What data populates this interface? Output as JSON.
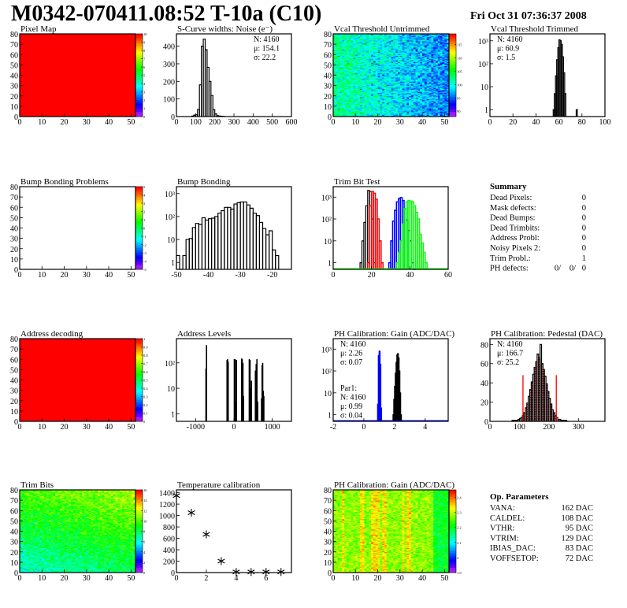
{
  "header": {
    "title": "M0342-070411.08:52 T-10a (C10)",
    "date": "Fri Oct 31 07:36:37 2008"
  },
  "colors": {
    "black": "#000000",
    "red": "#ff0000",
    "blue": "#0000ff",
    "green": "#00ff00"
  },
  "chart_data": [
    {
      "type": "heatmap",
      "title": "Pixel Map",
      "xlim": [
        0,
        52
      ],
      "ylim": [
        0,
        80
      ],
      "xticks": [
        0,
        10,
        20,
        30,
        40,
        50
      ],
      "yticks": [
        0,
        10,
        20,
        30,
        40,
        50,
        60,
        70,
        80
      ],
      "zlim": [
        0,
        10
      ],
      "zticks": [
        "0",
        "1",
        "2",
        "3",
        "4",
        "5",
        "6",
        "7",
        "8",
        "9",
        "10"
      ],
      "uniform_value": 10
    },
    {
      "type": "bar",
      "title": "S-Curve widths: Noise (e⁻)",
      "xlim": [
        0,
        600
      ],
      "ylim": [
        0,
        470
      ],
      "xticks": [
        0,
        100,
        200,
        300,
        400,
        500,
        600
      ],
      "yticks": [
        0,
        100,
        200,
        300,
        400
      ],
      "series": [
        {
          "color": "#000000",
          "x0": 80,
          "bw": 10,
          "counts": [
            3,
            8,
            10,
            40,
            180,
            400,
            440,
            380,
            280,
            200,
            120,
            40,
            15,
            5,
            3,
            2,
            1
          ]
        }
      ],
      "stats": [
        {
          "text": "N: 4160",
          "color": "#000000"
        },
        {
          "text": "μ: 154.1",
          "color": "#000000"
        },
        {
          "text": "σ: 22.2",
          "color": "#000000"
        }
      ]
    },
    {
      "type": "heatmap",
      "title": "Vcal Threshold Untrimmed",
      "xlim": [
        0,
        52
      ],
      "ylim": [
        0,
        80
      ],
      "xticks": [
        0,
        10,
        20,
        30,
        40,
        50
      ],
      "yticks": [
        0,
        10,
        20,
        30,
        40,
        50,
        60,
        70,
        80
      ],
      "zlim": [
        88,
        119
      ],
      "zticks": [
        "90",
        "95",
        "100",
        "105",
        "110",
        "115"
      ],
      "ztick_values": [
        90,
        95,
        100,
        105,
        110,
        115
      ]
    },
    {
      "type": "bar",
      "title": "Vcal Threshold Trimmed",
      "log_y": true,
      "xlim": [
        0,
        100
      ],
      "ylim": [
        0.5,
        2000
      ],
      "xticks": [
        0,
        20,
        40,
        60,
        80,
        100
      ],
      "yticks": [
        1,
        10,
        100,
        1000
      ],
      "ytick_labels": [
        "1",
        "10",
        "10²",
        "10³"
      ],
      "series": [
        {
          "color": "#000000",
          "x0": 55,
          "bw": 1,
          "counts": [
            1,
            5,
            30,
            150,
            500,
            1100,
            1000,
            700,
            200,
            40,
            5,
            0,
            0,
            0,
            0,
            0,
            0,
            0,
            0,
            0,
            1
          ]
        }
      ],
      "stats": [
        {
          "text": "N: 4160",
          "color": "#000000"
        },
        {
          "text": "μ: 60.9",
          "color": "#000000"
        },
        {
          "text": "σ:  1.5",
          "color": "#000000"
        }
      ]
    },
    {
      "type": "heatmap",
      "title": "Bump Bonding Problems",
      "xlim": [
        0,
        52
      ],
      "ylim": [
        0,
        80
      ],
      "xticks": [
        0,
        10,
        20,
        30,
        40,
        50
      ],
      "yticks": [
        0,
        10,
        20,
        30,
        40,
        50,
        60,
        70,
        80
      ],
      "zlim": [
        -5,
        5
      ],
      "zticks": [
        "-5",
        "-4",
        "-3",
        "-2",
        "-1",
        "0",
        "1",
        "2",
        "3",
        "4",
        "5"
      ],
      "empty": true
    },
    {
      "type": "bar",
      "title": "Bump Bonding",
      "log_y": true,
      "xlim": [
        -50,
        -14
      ],
      "ylim": [
        0.5,
        2000
      ],
      "xticks": [
        -50,
        -40,
        -30,
        -20
      ],
      "yticks": [
        1,
        10,
        100,
        1000
      ],
      "ytick_labels": [
        "1",
        "10",
        "10²",
        "10³"
      ],
      "series": [
        {
          "color": "#000000",
          "x0": -50,
          "bw": 1,
          "counts": [
            2,
            0,
            2,
            10,
            11,
            33,
            50,
            45,
            88,
            70,
            80,
            85,
            100,
            140,
            180,
            250,
            250,
            210,
            350,
            400,
            430,
            430,
            320,
            230,
            140,
            110,
            55,
            30,
            16,
            24,
            3.5,
            2
          ]
        }
      ]
    },
    {
      "type": "bar",
      "title": "Trim Bit Test",
      "log_y": true,
      "xlim": [
        0,
        60
      ],
      "ylim": [
        0.5,
        3000
      ],
      "xticks": [
        0,
        20,
        40,
        60
      ],
      "yticks": [
        1,
        10,
        100,
        1000
      ],
      "ytick_labels": [
        "1",
        "10",
        "10²",
        "10³"
      ],
      "series": [
        {
          "color": "#000000",
          "x0": 14,
          "bw": 1,
          "counts": [
            1,
            10,
            70,
            400,
            2000,
            1800,
            100,
            1
          ]
        },
        {
          "color": "#ff0000",
          "x0": 18,
          "bw": 1,
          "counts": [
            1,
            400,
            1800,
            1500,
            800,
            100,
            10,
            1
          ]
        },
        {
          "color": "#0000ff",
          "x0": 29,
          "bw": 1,
          "counts": [
            1,
            10,
            80,
            250,
            600,
            850,
            950,
            700,
            300,
            90,
            30,
            10,
            1,
            0.4
          ]
        },
        {
          "color": "#00ff00",
          "x0": 33,
          "bw": 1,
          "counts": [
            1,
            3,
            10,
            60,
            300,
            600,
            700,
            650,
            600,
            400,
            200,
            100,
            20,
            8,
            3,
            1
          ]
        }
      ]
    },
    null,
    {
      "type": "heatmap",
      "title": "Address decoding",
      "xlim": [
        0,
        52
      ],
      "ylim": [
        0,
        80
      ],
      "xticks": [
        0,
        10,
        20,
        30,
        40,
        50
      ],
      "yticks": [
        0,
        10,
        20,
        30,
        40,
        50,
        60,
        70,
        80
      ],
      "zlim": [
        0,
        1
      ],
      "zticks": [
        "0",
        "0.1",
        "0.2",
        "0.3",
        "0.4",
        "0.5",
        "0.6",
        "0.7",
        "0.8",
        "0.9",
        "1"
      ],
      "uniform_value": 1
    },
    {
      "type": "spikes",
      "title": "Address Levels",
      "log_y": true,
      "xlim": [
        -1500,
        1500
      ],
      "ylim": [
        0.5,
        900
      ],
      "xticks": [
        -1000,
        0,
        1000
      ],
      "yticks": [
        1,
        10,
        100
      ],
      "ytick_labels": [
        "1",
        "10",
        "10²"
      ],
      "points": [
        [
          -730,
          60
        ],
        [
          -715,
          500
        ],
        [
          -180,
          130
        ],
        [
          -165,
          140
        ],
        [
          -150,
          110
        ],
        [
          10,
          140
        ],
        [
          30,
          140
        ],
        [
          55,
          3
        ],
        [
          65,
          130
        ],
        [
          200,
          150
        ],
        [
          215,
          140
        ],
        [
          235,
          100
        ],
        [
          250,
          5
        ],
        [
          400,
          140
        ],
        [
          420,
          130
        ],
        [
          440,
          10
        ],
        [
          455,
          20
        ],
        [
          560,
          50
        ],
        [
          580,
          90
        ],
        [
          600,
          140
        ],
        [
          620,
          3
        ],
        [
          720,
          4
        ],
        [
          735,
          80
        ],
        [
          750,
          100
        ],
        [
          765,
          8
        ],
        [
          780,
          5
        ]
      ]
    },
    {
      "type": "bar",
      "title": "PH Calibration: Gain (ADC/DAC)",
      "log_y": true,
      "xlim": [
        -2,
        5.5
      ],
      "ylim": [
        0.5,
        3000
      ],
      "xticks": [
        -2,
        0,
        2,
        4
      ],
      "yticks": [
        1,
        10,
        100,
        1000
      ],
      "ytick_labels": [
        "1",
        "10",
        "10²",
        "10³"
      ],
      "series": [
        {
          "color": "#000000",
          "x0": 1.9,
          "bw": 0.05,
          "counts": [
            1,
            5,
            20,
            80,
            250,
            550,
            620,
            400,
            100,
            10,
            1,
            0.4,
            0.4
          ]
        },
        {
          "color": "#0000ff",
          "x0": 0.9,
          "bw": 0.05,
          "counts": [
            3,
            500,
            800,
            200,
            2
          ]
        }
      ],
      "stats": [
        {
          "text": "N: 4160",
          "color": "#000000"
        },
        {
          "text": "μ: 2.26",
          "color": "#000000"
        },
        {
          "text": "σ: 0.07",
          "color": "#000000"
        }
      ],
      "stats2": [
        {
          "text": "Par1:",
          "color": "#0000ff"
        },
        {
          "text": "N: 4160",
          "color": "#0000ff"
        },
        {
          "text": "μ: 0.99",
          "color": "#0000ff"
        },
        {
          "text": "σ: 0.04",
          "color": "#0000ff"
        }
      ]
    },
    {
      "type": "bar",
      "title": "PH Calibration: Pedestal (DAC)",
      "xlim": [
        0,
        390
      ],
      "ylim": [
        0,
        86
      ],
      "xticks": [
        0,
        100,
        200,
        300
      ],
      "yticks": [
        0,
        20,
        40,
        60,
        80
      ],
      "series": [
        {
          "color": "#000000",
          "x0": 75,
          "bw": 5,
          "counts": [
            1,
            1,
            1,
            1,
            2,
            3,
            4,
            6,
            9,
            14,
            19,
            26,
            33,
            41,
            49,
            56,
            62,
            70,
            66,
            80,
            60,
            54,
            47,
            39,
            31,
            24,
            18,
            12,
            9,
            6,
            4,
            2,
            2,
            1,
            1,
            1,
            1,
            0
          ]
        }
      ],
      "fill_range": [
        112,
        225
      ],
      "cut_lines": [
        112,
        225
      ],
      "cut_height": 48,
      "stats": [
        {
          "text": "N: 4160",
          "color": "#000000"
        },
        {
          "text": "μ: 166.7",
          "color": "#ff0000"
        },
        {
          "text": "σ: 25.2",
          "color": "#ff0000"
        }
      ]
    },
    {
      "type": "heatmap",
      "title": "Trim Bits",
      "xlim": [
        0,
        52
      ],
      "ylim": [
        0,
        80
      ],
      "xticks": [
        0,
        10,
        20,
        30,
        40,
        50
      ],
      "yticks": [
        0,
        10,
        20,
        30,
        40,
        50,
        60,
        70,
        80
      ],
      "zlim": [
        0,
        16
      ],
      "zticks": [
        "0",
        "2",
        "4",
        "6",
        "8",
        "10",
        "12",
        "14",
        "16"
      ],
      "ztick_values": [
        0,
        2,
        4,
        6,
        8,
        10,
        12,
        14,
        16
      ]
    },
    {
      "type": "scatter",
      "title": "Temperature calibration",
      "xlim": [
        0,
        7.7
      ],
      "ylim": [
        0,
        1450
      ],
      "xticks": [
        0,
        2,
        4,
        6
      ],
      "yticks": [
        0,
        200,
        400,
        600,
        800,
        1000,
        1200,
        1400
      ],
      "x": [
        0,
        1,
        2,
        3,
        4,
        5,
        6,
        7
      ],
      "y": [
        1350,
        1050,
        670,
        200,
        10,
        10,
        10,
        10
      ]
    },
    {
      "type": "heatmap",
      "title": "PH Calibration: Gain (ADC/DAC)",
      "xlim": [
        0,
        52
      ],
      "ylim": [
        0,
        80
      ],
      "xticks": [
        0,
        10,
        20,
        30,
        40,
        50
      ],
      "yticks": [
        0,
        10,
        20,
        30,
        40,
        50,
        60,
        70,
        80
      ],
      "zlim": [
        1.9,
        2.45
      ],
      "zticks": [
        "1.9",
        "2",
        "2.1",
        "2.2",
        "2.3",
        "2.4"
      ],
      "ztick_values": [
        1.9,
        2.0,
        2.1,
        2.2,
        2.3,
        2.4
      ]
    },
    null
  ],
  "summary": {
    "title": "Summary",
    "rows": [
      {
        "label": "Dead Pixels:",
        "value": "0"
      },
      {
        "label": "Mask defects:",
        "value": "0"
      },
      {
        "label": "Dead Bumps:",
        "value": "0"
      },
      {
        "label": "Dead Trimbits:",
        "value": "0"
      },
      {
        "label": "Address Probl:",
        "value": "0"
      },
      {
        "label": "Noisy Pixels 2:",
        "value": "0"
      },
      {
        "label": "Trim Probl.:",
        "value": "1"
      }
    ],
    "ph_defects": {
      "label": "PH defects:",
      "v1": "0/",
      "v2": "0/",
      "v3": "0"
    }
  },
  "op_parameters": {
    "title": "Op. Parameters",
    "rows": [
      {
        "label": "VANA:",
        "value": "162 DAC"
      },
      {
        "label": "CALDEL:",
        "value": "108 DAC"
      },
      {
        "label": "VTHR:",
        "value": "95 DAC"
      },
      {
        "label": "VTRIM:",
        "value": "129 DAC"
      },
      {
        "label": "IBIAS_DAC:",
        "value": "83 DAC"
      },
      {
        "label": "VOFFSETOP:",
        "value": "72 DAC"
      }
    ]
  }
}
